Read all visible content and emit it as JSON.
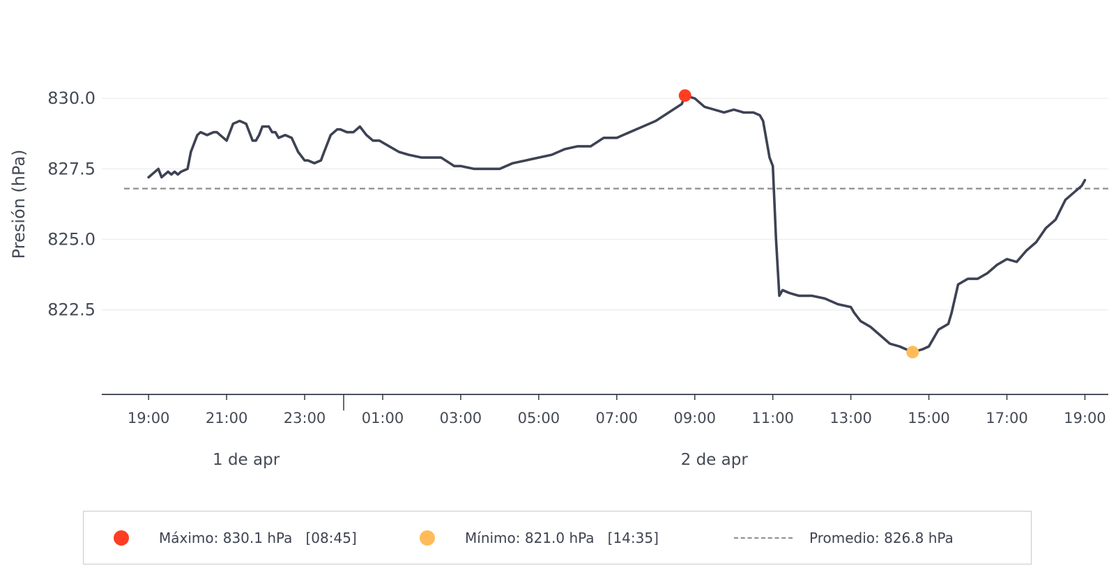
{
  "chart_data": {
    "type": "line",
    "ylabel": "Presión (hPa)",
    "ylim": [
      819.5,
      832.5
    ],
    "yticks": [
      "822.5",
      "825.0",
      "827.5",
      "830.0"
    ],
    "ytick_values": [
      822.5,
      825.0,
      827.5,
      830.0
    ],
    "xlim": [
      "1 de apr 17:48",
      "2 de apr 19:36"
    ],
    "xticks": [
      "19:00",
      "21:00",
      "23:00",
      "01:00",
      "03:00",
      "05:00",
      "07:00",
      "09:00",
      "11:00",
      "13:00",
      "15:00",
      "17:00",
      "19:00"
    ],
    "xtick_times": [
      "1 de apr 19:00",
      "1 de apr 21:00",
      "1 de apr 23:00",
      "2 de apr 01:00",
      "2 de apr 03:00",
      "2 de apr 05:00",
      "2 de apr 07:00",
      "2 de apr 09:00",
      "2 de apr 11:00",
      "2 de apr 13:00",
      "2 de apr 15:00",
      "2 de apr 17:00",
      "2 de apr 19:00"
    ],
    "day_labels": [
      "1 de apr",
      "2 de apr"
    ],
    "day_label_times": [
      "1 de apr 21:30",
      "2 de apr 09:30"
    ],
    "day_separator_time": "2 de apr 00:00",
    "grid": "horizontal",
    "legend_position": "bottom",
    "series": [
      {
        "color": "#3d4254",
        "x": [
          "1 de apr 19:00",
          "1 de apr 19:15",
          "1 de apr 19:20",
          "1 de apr 19:30",
          "1 de apr 19:35",
          "1 de apr 19:40",
          "1 de apr 19:45",
          "1 de apr 19:50",
          "1 de apr 20:00",
          "1 de apr 20:05",
          "1 de apr 20:15",
          "1 de apr 20:20",
          "1 de apr 20:30",
          "1 de apr 20:40",
          "1 de apr 20:45",
          "1 de apr 20:50",
          "1 de apr 21:00",
          "1 de apr 21:10",
          "1 de apr 21:20",
          "1 de apr 21:30",
          "1 de apr 21:40",
          "1 de apr 21:45",
          "1 de apr 21:50",
          "1 de apr 21:55",
          "1 de apr 22:05",
          "1 de apr 22:10",
          "1 de apr 22:15",
          "1 de apr 22:20",
          "1 de apr 22:30",
          "1 de apr 22:40",
          "1 de apr 22:50",
          "1 de apr 23:00",
          "1 de apr 23:05",
          "1 de apr 23:15",
          "1 de apr 23:25",
          "1 de apr 23:30",
          "1 de apr 23:40",
          "1 de apr 23:50",
          "1 de apr 23:55",
          "2 de apr 00:05",
          "2 de apr 00:15",
          "2 de apr 00:25",
          "2 de apr 00:35",
          "2 de apr 00:45",
          "2 de apr 00:55",
          "2 de apr 01:10",
          "2 de apr 01:25",
          "2 de apr 01:40",
          "2 de apr 02:00",
          "2 de apr 02:15",
          "2 de apr 02:30",
          "2 de apr 02:50",
          "2 de apr 03:00",
          "2 de apr 03:20",
          "2 de apr 03:40",
          "2 de apr 04:00",
          "2 de apr 04:20",
          "2 de apr 04:40",
          "2 de apr 05:00",
          "2 de apr 05:20",
          "2 de apr 05:40",
          "2 de apr 06:00",
          "2 de apr 06:20",
          "2 de apr 06:40",
          "2 de apr 07:00",
          "2 de apr 07:20",
          "2 de apr 07:40",
          "2 de apr 08:00",
          "2 de apr 08:20",
          "2 de apr 08:40",
          "2 de apr 08:45",
          "2 de apr 09:00",
          "2 de apr 09:15",
          "2 de apr 09:30",
          "2 de apr 09:45",
          "2 de apr 10:00",
          "2 de apr 10:15",
          "2 de apr 10:30",
          "2 de apr 10:40",
          "2 de apr 10:45",
          "2 de apr 10:55",
          "2 de apr 11:00",
          "2 de apr 11:05",
          "2 de apr 11:10",
          "2 de apr 11:15",
          "2 de apr 11:25",
          "2 de apr 11:40",
          "2 de apr 12:00",
          "2 de apr 12:20",
          "2 de apr 12:40",
          "2 de apr 13:00",
          "2 de apr 13:05",
          "2 de apr 13:15",
          "2 de apr 13:30",
          "2 de apr 13:45",
          "2 de apr 14:00",
          "2 de apr 14:15",
          "2 de apr 14:35",
          "2 de apr 14:50",
          "2 de apr 15:00",
          "2 de apr 15:15",
          "2 de apr 15:30",
          "2 de apr 15:35",
          "2 de apr 15:45",
          "2 de apr 16:00",
          "2 de apr 16:15",
          "2 de apr 16:30",
          "2 de apr 16:45",
          "2 de apr 17:00",
          "2 de apr 17:15",
          "2 de apr 17:30",
          "2 de apr 17:45",
          "2 de apr 18:00",
          "2 de apr 18:15",
          "2 de apr 18:30",
          "2 de apr 18:45",
          "2 de apr 18:55",
          "2 de apr 19:00"
        ],
        "y": [
          827.2,
          827.5,
          827.2,
          827.4,
          827.3,
          827.4,
          827.3,
          827.4,
          827.5,
          828.1,
          828.7,
          828.8,
          828.7,
          828.8,
          828.8,
          828.7,
          828.5,
          829.1,
          829.2,
          829.1,
          828.5,
          828.5,
          828.7,
          829.0,
          829.0,
          828.8,
          828.8,
          828.6,
          828.7,
          828.6,
          828.1,
          827.8,
          827.8,
          827.7,
          827.8,
          828.1,
          828.7,
          828.9,
          828.9,
          828.8,
          828.8,
          829.0,
          828.7,
          828.5,
          828.5,
          828.3,
          828.1,
          828.0,
          827.9,
          827.9,
          827.9,
          827.6,
          827.6,
          827.5,
          827.5,
          827.5,
          827.7,
          827.8,
          827.9,
          828.0,
          828.2,
          828.3,
          828.3,
          828.6,
          828.6,
          828.8,
          829.0,
          829.2,
          829.5,
          829.8,
          830.1,
          830.0,
          829.7,
          829.6,
          829.5,
          829.6,
          829.5,
          829.5,
          829.4,
          829.2,
          827.9,
          827.6,
          825.0,
          823.0,
          823.2,
          823.1,
          823.0,
          823.0,
          822.9,
          822.7,
          822.6,
          822.4,
          822.1,
          821.9,
          821.6,
          821.3,
          821.2,
          821.0,
          821.1,
          821.2,
          821.8,
          822.0,
          822.4,
          823.4,
          823.6,
          823.6,
          823.8,
          824.1,
          824.3,
          824.2,
          824.6,
          824.9,
          825.4,
          825.7,
          826.4,
          826.7,
          826.9,
          827.1
        ]
      }
    ],
    "max_point": {
      "time": "2 de apr 08:45",
      "value": 830.1,
      "color": "#ff3d22"
    },
    "min_point": {
      "time": "2 de apr 14:35",
      "value": 821.0,
      "color": "#ffbb59"
    },
    "mean_value": 826.8,
    "mean_color": "#8e8e8e"
  },
  "legend": {
    "max_label": "Máximo: 830.1 hPa   [08:45]",
    "min_label": "Mínimo: 821.0 hPa   [14:35]",
    "mean_label": "Promedio: 826.8 hPa"
  }
}
